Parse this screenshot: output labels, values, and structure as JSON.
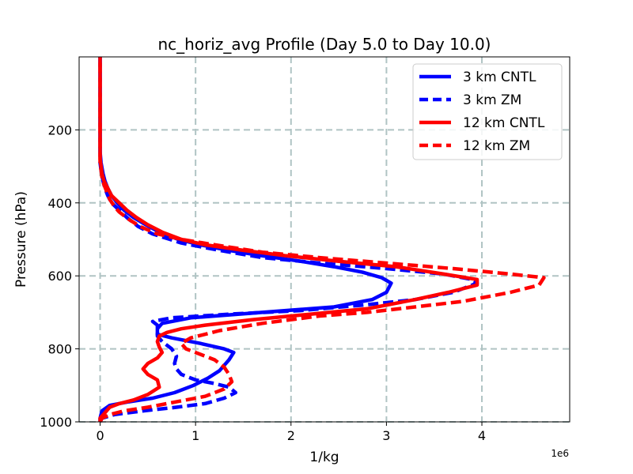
{
  "chart_data": {
    "type": "line",
    "title": "nc_horiz_avg Profile (Day 5.0 to Day 10.0)",
    "xlabel": "1/kg",
    "ylabel": "Pressure (hPa)",
    "x_scale_label": "1e6",
    "x_scale": 1000000,
    "xlim": [
      -0.22,
      4.92
    ],
    "ylim": [
      1000,
      0
    ],
    "y_inverted": true,
    "xticks": [
      0,
      1,
      2,
      3,
      4
    ],
    "xtick_labels": [
      "0",
      "1",
      "2",
      "3",
      "4"
    ],
    "yticks": [
      200,
      400,
      600,
      800,
      1000
    ],
    "ytick_labels": [
      "200",
      "400",
      "600",
      "800",
      "1000"
    ],
    "grid": true,
    "legend_position": "top-right",
    "series": [
      {
        "name": "3 km CNTL",
        "color": "#0000ff",
        "dash": "solid",
        "points": [
          [
            0.0,
            1000
          ],
          [
            0.0,
            990
          ],
          [
            0.02,
            970
          ],
          [
            0.1,
            955
          ],
          [
            0.3,
            945
          ],
          [
            0.55,
            935
          ],
          [
            0.78,
            920
          ],
          [
            0.98,
            900
          ],
          [
            1.13,
            880
          ],
          [
            1.25,
            860
          ],
          [
            1.35,
            830
          ],
          [
            1.4,
            810
          ],
          [
            1.3,
            800
          ],
          [
            1.05,
            785
          ],
          [
            0.75,
            770
          ],
          [
            0.6,
            760
          ],
          [
            0.6,
            745
          ],
          [
            0.65,
            730
          ],
          [
            0.95,
            715
          ],
          [
            1.7,
            700
          ],
          [
            2.45,
            685
          ],
          [
            2.85,
            665
          ],
          [
            3.0,
            645
          ],
          [
            3.05,
            620
          ],
          [
            2.95,
            605
          ],
          [
            2.75,
            590
          ],
          [
            2.45,
            575
          ],
          [
            2.1,
            560
          ],
          [
            1.7,
            545
          ],
          [
            1.35,
            530
          ],
          [
            1.05,
            515
          ],
          [
            0.82,
            500
          ],
          [
            0.62,
            480
          ],
          [
            0.48,
            460
          ],
          [
            0.35,
            440
          ],
          [
            0.25,
            420
          ],
          [
            0.18,
            400
          ],
          [
            0.12,
            380
          ],
          [
            0.08,
            360
          ],
          [
            0.05,
            340
          ],
          [
            0.03,
            320
          ],
          [
            0.01,
            290
          ],
          [
            0.0,
            260
          ],
          [
            0.0,
            200
          ],
          [
            0.0,
            100
          ],
          [
            0.0,
            0
          ]
        ]
      },
      {
        "name": "3 km ZM",
        "color": "#0000ff",
        "dash": "dashed",
        "points": [
          [
            0.0,
            1000
          ],
          [
            0.02,
            990
          ],
          [
            0.15,
            980
          ],
          [
            0.45,
            970
          ],
          [
            0.8,
            960
          ],
          [
            1.1,
            950
          ],
          [
            1.3,
            935
          ],
          [
            1.42,
            920
          ],
          [
            1.35,
            905
          ],
          [
            1.2,
            895
          ],
          [
            1.0,
            885
          ],
          [
            0.85,
            870
          ],
          [
            0.8,
            855
          ],
          [
            0.78,
            840
          ],
          [
            0.8,
            820
          ],
          [
            0.75,
            800
          ],
          [
            0.65,
            780
          ],
          [
            0.6,
            765
          ],
          [
            0.6,
            750
          ],
          [
            0.6,
            735
          ],
          [
            0.55,
            725
          ],
          [
            0.75,
            715
          ],
          [
            1.35,
            705
          ],
          [
            2.1,
            695
          ],
          [
            2.75,
            680
          ],
          [
            3.3,
            665
          ],
          [
            3.7,
            645
          ],
          [
            3.95,
            620
          ],
          [
            3.9,
            610
          ],
          [
            3.6,
            595
          ],
          [
            3.0,
            580
          ],
          [
            2.3,
            565
          ],
          [
            1.7,
            550
          ],
          [
            1.25,
            530
          ],
          [
            0.85,
            510
          ],
          [
            0.55,
            485
          ],
          [
            0.4,
            465
          ],
          [
            0.28,
            440
          ],
          [
            0.2,
            420
          ],
          [
            0.12,
            400
          ],
          [
            0.08,
            380
          ],
          [
            0.05,
            360
          ],
          [
            0.03,
            340
          ],
          [
            0.01,
            310
          ],
          [
            0.0,
            290
          ],
          [
            0.0,
            200
          ],
          [
            0.0,
            0
          ]
        ]
      },
      {
        "name": "12 km CNTL",
        "color": "#ff0000",
        "dash": "solid",
        "points": [
          [
            0.0,
            1000
          ],
          [
            0.0,
            990
          ],
          [
            0.05,
            975
          ],
          [
            0.1,
            960
          ],
          [
            0.2,
            950
          ],
          [
            0.35,
            940
          ],
          [
            0.5,
            925
          ],
          [
            0.62,
            905
          ],
          [
            0.6,
            885
          ],
          [
            0.5,
            870
          ],
          [
            0.45,
            855
          ],
          [
            0.5,
            840
          ],
          [
            0.6,
            825
          ],
          [
            0.65,
            810
          ],
          [
            0.62,
            795
          ],
          [
            0.6,
            780
          ],
          [
            0.62,
            765
          ],
          [
            0.7,
            755
          ],
          [
            0.85,
            745
          ],
          [
            1.1,
            735
          ],
          [
            1.6,
            720
          ],
          [
            2.2,
            705
          ],
          [
            2.8,
            690
          ],
          [
            3.3,
            665
          ],
          [
            3.65,
            645
          ],
          [
            3.95,
            625
          ],
          [
            3.95,
            610
          ],
          [
            3.6,
            595
          ],
          [
            3.1,
            575
          ],
          [
            2.5,
            560
          ],
          [
            1.95,
            545
          ],
          [
            1.5,
            530
          ],
          [
            1.1,
            515
          ],
          [
            0.85,
            500
          ],
          [
            0.65,
            480
          ],
          [
            0.5,
            460
          ],
          [
            0.38,
            440
          ],
          [
            0.28,
            420
          ],
          [
            0.2,
            400
          ],
          [
            0.12,
            380
          ],
          [
            0.08,
            360
          ],
          [
            0.04,
            340
          ],
          [
            0.02,
            320
          ],
          [
            0.01,
            300
          ],
          [
            0.0,
            280
          ],
          [
            0.0,
            200
          ],
          [
            0.0,
            100
          ],
          [
            0.0,
            0
          ]
        ]
      },
      {
        "name": "12 km ZM",
        "color": "#ff0000",
        "dash": "dashed",
        "points": [
          [
            0.0,
            1000
          ],
          [
            0.02,
            990
          ],
          [
            0.1,
            980
          ],
          [
            0.25,
            970
          ],
          [
            0.5,
            960
          ],
          [
            0.8,
            945
          ],
          [
            1.1,
            930
          ],
          [
            1.3,
            910
          ],
          [
            1.38,
            890
          ],
          [
            1.35,
            870
          ],
          [
            1.3,
            850
          ],
          [
            1.2,
            830
          ],
          [
            1.05,
            815
          ],
          [
            0.9,
            800
          ],
          [
            0.85,
            785
          ],
          [
            0.95,
            770
          ],
          [
            1.25,
            750
          ],
          [
            1.7,
            730
          ],
          [
            2.3,
            710
          ],
          [
            2.8,
            700
          ],
          [
            3.3,
            685
          ],
          [
            3.8,
            670
          ],
          [
            4.3,
            645
          ],
          [
            4.6,
            625
          ],
          [
            4.65,
            605
          ],
          [
            4.3,
            595
          ],
          [
            3.7,
            580
          ],
          [
            3.0,
            565
          ],
          [
            2.3,
            550
          ],
          [
            1.7,
            535
          ],
          [
            1.2,
            515
          ],
          [
            0.85,
            500
          ],
          [
            0.6,
            485
          ],
          [
            0.42,
            465
          ],
          [
            0.3,
            445
          ],
          [
            0.2,
            425
          ],
          [
            0.15,
            410
          ],
          [
            0.1,
            390
          ],
          [
            0.07,
            370
          ],
          [
            0.04,
            350
          ],
          [
            0.02,
            330
          ],
          [
            0.01,
            310
          ],
          [
            0.0,
            290
          ],
          [
            0.0,
            200
          ],
          [
            0.0,
            0
          ]
        ]
      }
    ]
  }
}
